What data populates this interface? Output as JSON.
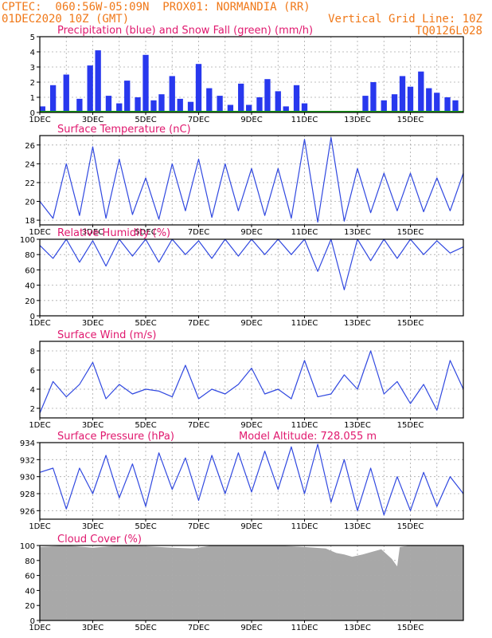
{
  "header": {
    "line1_left": "CPTEC:  060:56W-05:09N  PROX01: NORMANDIA (RR)",
    "line2_left": "01DEC2020 10Z (GMT)",
    "line2_right": "Vertical Grid Line: 10Z",
    "line3_right": "TQ0126L028"
  },
  "colors": {
    "header": "#f07818",
    "title": "#e0186e",
    "line": "#3048e0",
    "bar": "#2838ee",
    "snow": "#18a018",
    "cloud": "#a8a8a8",
    "grid": "#aaaaaa"
  },
  "x_labels": [
    "1DEC",
    "3DEC",
    "5DEC",
    "7DEC",
    "9DEC",
    "11DEC",
    "13DEC",
    "15DEC"
  ],
  "chart_data": [
    {
      "type": "bar",
      "title": "Precipitation (blue) and Snow Fall (green) (mm/h)",
      "ylim": [
        0,
        5
      ],
      "yticks": [
        0,
        1,
        2,
        3,
        4,
        5
      ],
      "series": [
        {
          "name": "Precipitation",
          "x": [
            0.1,
            0.5,
            1.0,
            1.5,
            1.9,
            2.2,
            2.6,
            3.0,
            3.3,
            3.7,
            4.0,
            4.3,
            4.6,
            5.0,
            5.3,
            5.7,
            6.0,
            6.4,
            6.8,
            7.2,
            7.6,
            7.9,
            8.3,
            8.6,
            9.0,
            9.3,
            9.7,
            10.0,
            12.3,
            12.6,
            13.0,
            13.4,
            13.7,
            14.0,
            14.4,
            14.7,
            15.0,
            15.4,
            15.7
          ],
          "values": [
            0.4,
            1.8,
            2.5,
            0.9,
            3.1,
            4.1,
            1.1,
            0.6,
            2.1,
            1.0,
            3.8,
            0.8,
            1.2,
            2.4,
            0.9,
            0.7,
            3.2,
            1.6,
            1.1,
            0.5,
            1.9,
            0.5,
            1.0,
            2.2,
            1.4,
            0.4,
            1.8,
            0.6,
            1.1,
            2.0,
            0.8,
            1.2,
            2.4,
            1.7,
            2.7,
            1.6,
            1.3,
            1.0,
            0.8
          ]
        },
        {
          "name": "Snow Fall",
          "x": [
            0,
            16
          ],
          "values": [
            0,
            0
          ]
        }
      ]
    },
    {
      "type": "line",
      "title": "Surface Temperature (nC)",
      "ylim": [
        17.5,
        27
      ],
      "yticks": [
        18,
        20,
        22,
        24,
        26
      ],
      "x": [
        0,
        0.5,
        1.0,
        1.5,
        2.0,
        2.5,
        3.0,
        3.5,
        4.0,
        4.5,
        5.0,
        5.5,
        6.0,
        6.5,
        7.0,
        7.5,
        8.0,
        8.5,
        9.0,
        9.5,
        10.0,
        10.5,
        11.0,
        11.5,
        12.0,
        12.5,
        13.0,
        13.5,
        14.0,
        14.5,
        15.0,
        15.5,
        16.0
      ],
      "series": [
        {
          "name": "Temperature",
          "values": [
            20,
            18.2,
            24,
            18.5,
            25.8,
            18.2,
            24.5,
            18.6,
            22.5,
            18.1,
            24,
            19,
            24.5,
            18.3,
            24,
            19,
            23.5,
            18.5,
            23.5,
            18.2,
            26.6,
            17.8,
            26.8,
            17.9,
            23.5,
            18.8,
            23,
            19,
            23,
            18.9,
            22.5,
            19,
            23
          ]
        }
      ]
    },
    {
      "type": "line",
      "title": "Relative Humidity (%)",
      "ylim": [
        0,
        100
      ],
      "yticks": [
        0,
        20,
        40,
        60,
        80,
        100
      ],
      "x": [
        0,
        0.5,
        1.0,
        1.5,
        2.0,
        2.5,
        3.0,
        3.5,
        4.0,
        4.5,
        5.0,
        5.5,
        6.0,
        6.5,
        7.0,
        7.5,
        8.0,
        8.5,
        9.0,
        9.5,
        10.0,
        10.5,
        11.0,
        11.5,
        12.0,
        12.5,
        13.0,
        13.5,
        14.0,
        14.5,
        15.0,
        15.5,
        16.0
      ],
      "series": [
        {
          "name": "Humidity",
          "values": [
            92,
            75,
            100,
            70,
            98,
            65,
            100,
            78,
            100,
            70,
            100,
            80,
            98,
            75,
            100,
            78,
            100,
            80,
            100,
            80,
            100,
            58,
            100,
            34,
            100,
            72,
            100,
            75,
            100,
            80,
            98,
            82,
            90
          ]
        }
      ]
    },
    {
      "type": "line",
      "title": "Surface Wind (m/s)",
      "ylim": [
        1,
        9
      ],
      "yticks": [
        2,
        4,
        6,
        8
      ],
      "x": [
        0,
        0.5,
        1.0,
        1.5,
        2.0,
        2.5,
        3.0,
        3.5,
        4.0,
        4.5,
        5.0,
        5.5,
        6.0,
        6.5,
        7.0,
        7.5,
        8.0,
        8.5,
        9.0,
        9.5,
        10.0,
        10.5,
        11.0,
        11.5,
        12.0,
        12.5,
        13.0,
        13.5,
        14.0,
        14.5,
        15.0,
        15.5,
        16.0
      ],
      "series": [
        {
          "name": "Wind",
          "values": [
            1.5,
            4.8,
            3.2,
            4.5,
            6.8,
            3.0,
            4.5,
            3.5,
            4.0,
            3.8,
            3.2,
            6.5,
            3.0,
            4.0,
            3.5,
            4.5,
            6.2,
            3.5,
            4.0,
            3.0,
            7.0,
            3.2,
            3.5,
            5.5,
            4.0,
            8.0,
            3.5,
            4.8,
            2.5,
            4.5,
            1.8,
            7.0,
            4.0
          ]
        }
      ]
    },
    {
      "type": "line",
      "title": "Surface Pressure (hPa)",
      "subtitle": "Model Altitude: 728.055  m",
      "ylim": [
        925,
        934
      ],
      "yticks": [
        926,
        928,
        930,
        932,
        934
      ],
      "x": [
        0,
        0.5,
        1.0,
        1.5,
        2.0,
        2.5,
        3.0,
        3.5,
        4.0,
        4.5,
        5.0,
        5.5,
        6.0,
        6.5,
        7.0,
        7.5,
        8.0,
        8.5,
        9.0,
        9.5,
        10.0,
        10.5,
        11.0,
        11.5,
        12.0,
        12.5,
        13.0,
        13.5,
        14.0,
        14.5,
        15.0,
        15.5,
        16.0
      ],
      "series": [
        {
          "name": "Pressure",
          "values": [
            930.5,
            931,
            926.2,
            931,
            928,
            932.5,
            927.5,
            931.5,
            926.5,
            932.8,
            928.5,
            932.2,
            927.2,
            932.5,
            928,
            932.8,
            928.2,
            933,
            928.5,
            933.5,
            928,
            933.8,
            927,
            932,
            926,
            931,
            925.5,
            930,
            926,
            930.5,
            926.5,
            930,
            928
          ]
        }
      ]
    },
    {
      "type": "area",
      "title": "Cloud Cover (%)",
      "ylim": [
        0,
        100
      ],
      "yticks": [
        0,
        20,
        40,
        60,
        80,
        100
      ],
      "x": [
        0,
        1,
        2,
        3,
        4,
        5,
        5.8,
        6.5,
        7,
        8,
        9,
        10,
        10.8,
        11.2,
        11.5,
        11.8,
        12.2,
        12.6,
        12.9,
        13.3,
        13.5,
        13.6,
        14,
        15,
        16
      ],
      "series": [
        {
          "name": "Cloud Cover",
          "values": [
            98,
            100,
            97,
            100,
            99,
            97,
            96,
            100,
            100,
            100,
            100,
            98,
            96,
            90,
            88,
            85,
            88,
            92,
            95,
            82,
            72,
            98,
            100,
            100,
            100
          ]
        }
      ]
    }
  ]
}
